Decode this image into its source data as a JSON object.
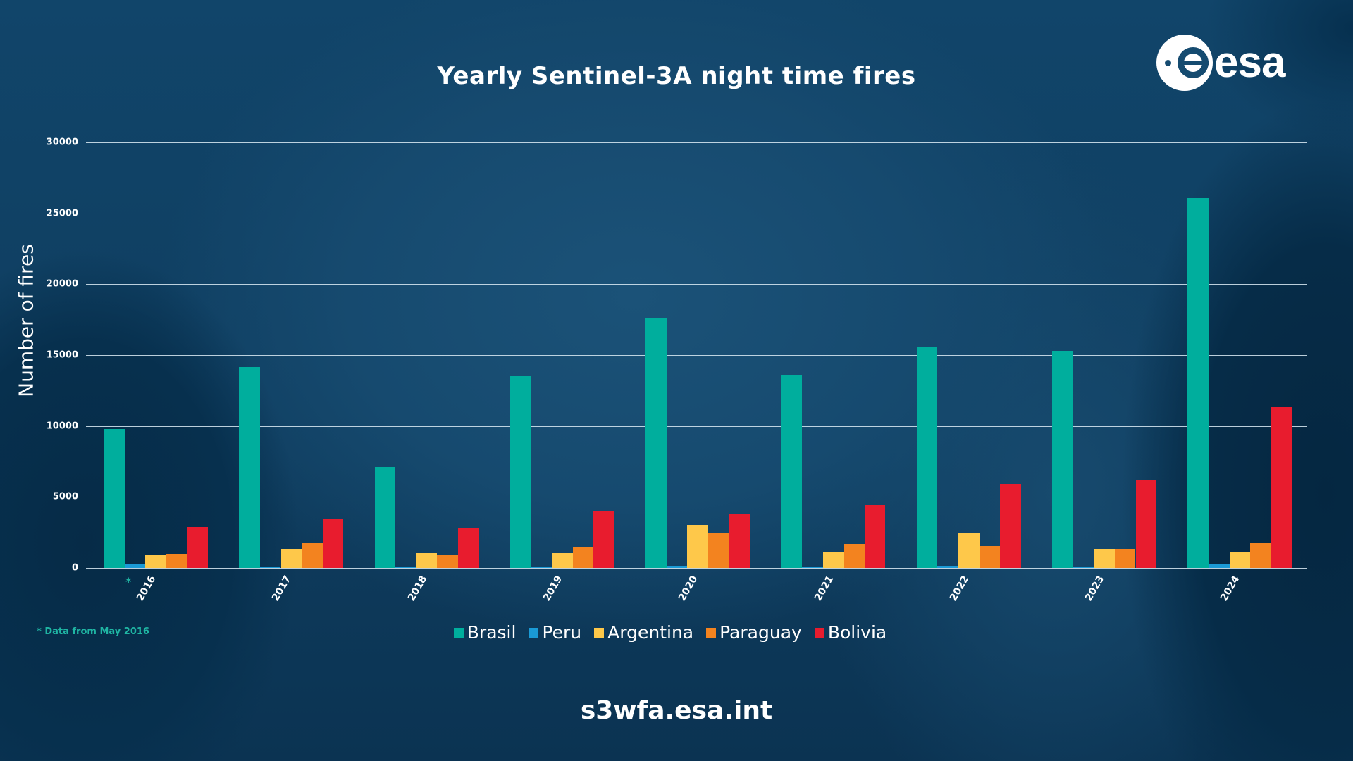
{
  "header": {
    "title": "Yearly Sentinel-3A night time fires",
    "logo_text": "esa"
  },
  "footer": {
    "url": "s3wfa.esa.int",
    "footnote": "* Data from May 2016",
    "asterisk": "*"
  },
  "colors": {
    "Brasil": "#00ae9d",
    "Peru": "#1a9ad6",
    "Argentina": "#fec84a",
    "Paraguay": "#f3831f",
    "Bolivia": "#e81c2e",
    "background": "#134a70",
    "footnote": "#1fb5a3"
  },
  "chart_data": {
    "type": "bar",
    "title": "Yearly Sentinel-3A night time fires",
    "xlabel": "",
    "ylabel": "Number of fires",
    "ylim": [
      0,
      30000
    ],
    "yticks": [
      0,
      5000,
      10000,
      15000,
      20000,
      25000,
      30000
    ],
    "grid": true,
    "legend_position": "bottom",
    "categories": [
      "2016",
      "2017",
      "2018",
      "2019",
      "2020",
      "2021",
      "2022",
      "2023",
      "2024"
    ],
    "annotations": [
      "* Data from May 2016 (asterisk on 2016)"
    ],
    "series": [
      {
        "name": "Brasil",
        "values": [
          9800,
          14150,
          7080,
          13500,
          17600,
          13600,
          15600,
          15300,
          26100
        ]
      },
      {
        "name": "Peru",
        "values": [
          250,
          30,
          30,
          100,
          150,
          30,
          150,
          80,
          300
        ]
      },
      {
        "name": "Argentina",
        "values": [
          950,
          1350,
          1050,
          1050,
          3050,
          1150,
          2500,
          1350,
          1080
        ]
      },
      {
        "name": "Paraguay",
        "values": [
          1000,
          1750,
          900,
          1450,
          2450,
          1700,
          1550,
          1350,
          1780
        ]
      },
      {
        "name": "Bolivia",
        "values": [
          2900,
          3500,
          2800,
          4000,
          3800,
          4450,
          5900,
          6200,
          11300
        ]
      }
    ]
  }
}
